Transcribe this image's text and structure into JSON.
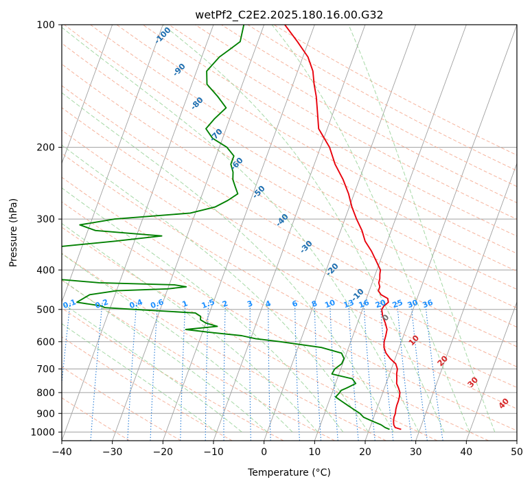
{
  "chart_data": {
    "type": "skew-t",
    "title": "wetPf2_C2E2.2025.180.16.00.G32",
    "xlabel": "Temperature (°C)",
    "ylabel": "Pressure (hPa)",
    "xlim": [
      -40,
      50
    ],
    "ylim": [
      1000,
      100
    ],
    "y_scale": "log",
    "x_ticks": [
      -40,
      -30,
      -20,
      -10,
      0,
      10,
      20,
      30,
      40,
      50
    ],
    "x_tick_labels": [
      "−40",
      "−30",
      "−20",
      "−10",
      "0",
      "10",
      "20",
      "30",
      "40",
      "50"
    ],
    "y_ticks": [
      100,
      200,
      300,
      400,
      500,
      600,
      700,
      800,
      900,
      1000
    ],
    "y_tick_labels": [
      "100",
      "200",
      "300",
      "400",
      "500",
      "600",
      "700",
      "800",
      "900",
      "1000"
    ],
    "grid": true,
    "colors": {
      "temperature": "#e8000b",
      "dewpoint": "#008000",
      "isotherm": "#a0a0a0",
      "dry_adiabat": "#f5a48a",
      "moist_adiabat": "#8fce8f",
      "mixing_ratio": "#1f77d4",
      "label_blue": "#1f6fb0",
      "label_red": "#d62728",
      "label_mixing": "#1e90ff"
    },
    "series": [
      {
        "pressure": [
          985,
          975,
          960,
          940,
          920,
          900,
          880,
          860,
          840,
          820,
          800,
          780,
          760,
          740,
          720,
          700,
          680,
          660,
          640,
          620,
          600,
          580,
          560,
          540,
          520,
          500,
          490,
          480,
          470,
          460,
          450,
          440,
          430,
          420,
          410,
          400,
          380,
          360,
          340,
          320,
          300,
          280,
          260,
          240,
          220,
          200,
          180,
          160,
          150,
          140,
          130,
          120,
          110,
          100
        ],
        "temperature": [
          26.3,
          25.0,
          24.5,
          24.2,
          24.0,
          24.0,
          23.8,
          23.7,
          23.7,
          23.6,
          23.4,
          22.8,
          22.1,
          21.8,
          21.4,
          21.2,
          20.5,
          19.0,
          17.8,
          17.0,
          16.6,
          16.5,
          16.3,
          15.5,
          14.5,
          13.8,
          14.0,
          14.6,
          14.2,
          12.6,
          11.8,
          11.8,
          11.3,
          11.2,
          10.9,
          10.7,
          9.2,
          7.6,
          5.6,
          4.2,
          2.3,
          0.5,
          -1.1,
          -3.2,
          -5.9,
          -8.2,
          -11.7,
          -13.5,
          -14.5,
          -15.8,
          -17.0,
          -19.0,
          -22.2,
          -25.9
        ]
      },
      {
        "pressure": [
          985,
          975,
          960,
          940,
          920,
          900,
          880,
          860,
          840,
          820,
          800,
          790,
          780,
          760,
          740,
          720,
          700,
          680,
          660,
          640,
          620,
          600,
          590,
          580,
          570,
          560,
          550,
          540,
          530,
          520,
          510,
          500,
          495,
          490,
          480,
          470,
          460,
          450,
          445,
          440,
          435,
          430,
          420,
          410,
          400,
          390,
          380,
          370,
          360,
          350,
          340,
          330,
          320,
          310,
          300,
          290,
          280,
          270,
          260,
          250,
          240,
          230,
          220,
          210,
          200,
          190,
          180,
          170,
          160,
          150,
          140,
          130,
          120,
          115,
          110,
          100
        ],
        "temperature": [
          24.0,
          23.0,
          22.0,
          20.0,
          18.0,
          17.0,
          15.5,
          14.0,
          12.5,
          11.0,
          11.5,
          11.6,
          12.5,
          14.0,
          13.0,
          8.6,
          8.8,
          9.8,
          9.9,
          9.0,
          4.6,
          -3.9,
          -9.0,
          -12.0,
          -18.0,
          -23.5,
          -17.5,
          -20.0,
          -21.3,
          -21.5,
          -22.8,
          -35.0,
          -41.0,
          -42.0,
          -47.0,
          -46.0,
          -45.0,
          -40.0,
          -30.0,
          -26.5,
          -29.0,
          -44.0,
          -54.0,
          -59.0,
          -64.0,
          -64.0,
          -63.5,
          -63.0,
          -55.5,
          -54.0,
          -44.0,
          -35.0,
          -48.5,
          -52.0,
          -45.5,
          -31.0,
          -26.5,
          -24.5,
          -23.0,
          -24.0,
          -25.0,
          -25.5,
          -26.5,
          -26.5,
          -28.5,
          -32.0,
          -34.0,
          -33.0,
          -31.5,
          -34.0,
          -37.0,
          -38.0,
          -36.5,
          -35.0,
          -33.5,
          -34.0
        ]
      }
    ],
    "dry_adiabat_labels": [
      "-100",
      "-90",
      "-80",
      "-70",
      "-60",
      "-50",
      "-40",
      "-30",
      "-20",
      "-10",
      "0",
      "10",
      "20",
      "30",
      "40"
    ],
    "mixing_ratio_labels": [
      "0.1",
      "0.2",
      "0.4",
      "0.6",
      "1",
      "1.5",
      "2",
      "3",
      "4",
      "6",
      "8",
      "10",
      "13",
      "16",
      "20",
      "25",
      "30",
      "36"
    ]
  }
}
